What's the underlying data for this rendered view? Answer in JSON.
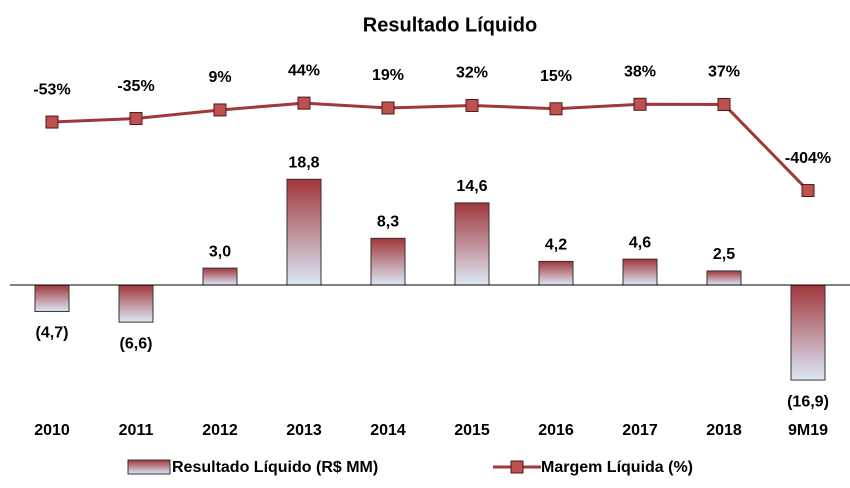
{
  "chart_data": {
    "type": "bar-line",
    "title": "Resultado Líquido",
    "categories": [
      "2010",
      "2011",
      "2012",
      "2013",
      "2014",
      "2015",
      "2016",
      "2017",
      "2018",
      "9M19"
    ],
    "series": [
      {
        "name": "Resultado Líquido (R$ MM)",
        "type": "bar",
        "color": "#a0373b",
        "gradient_color": "#dde8f6",
        "values": [
          -4.7,
          -6.6,
          3.0,
          18.8,
          8.3,
          14.6,
          4.2,
          4.6,
          2.5,
          -16.9
        ],
        "value_labels": [
          "(4,7)",
          "(6,6)",
          "3,0",
          "18,8",
          "8,3",
          "14,6",
          "4,2",
          "4,6",
          "2,5",
          "(16,9)"
        ]
      },
      {
        "name": "Margem Líquida (%)",
        "type": "line",
        "axis": "y2",
        "color": "#a0373b",
        "marker_color": "#c0504d",
        "values": [
          -53,
          -35,
          9,
          44,
          19,
          32,
          15,
          38,
          37,
          -404
        ],
        "value_labels": [
          "-53%",
          "-35%",
          "9%",
          "44%",
          "19%",
          "32%",
          "15%",
          "38%",
          "37%",
          "-404%"
        ]
      }
    ],
    "ylim": [
      -24,
      40
    ],
    "y2lim": [
      -1580,
      265
    ]
  }
}
